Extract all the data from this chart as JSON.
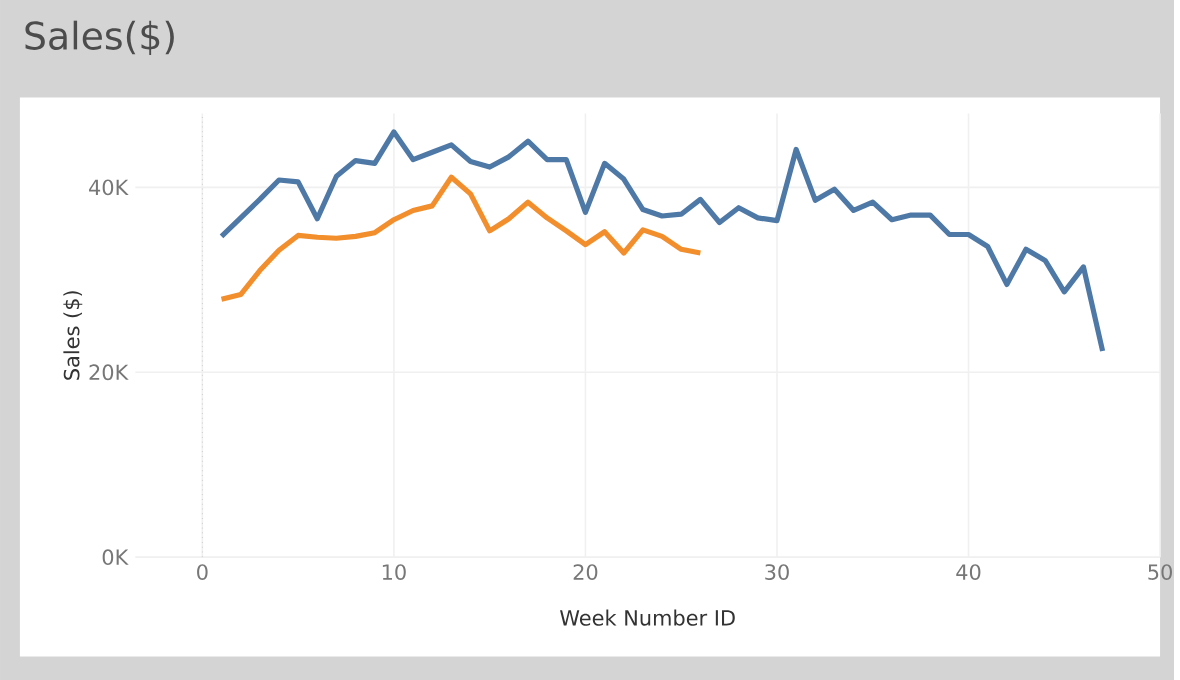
{
  "chart_data": {
    "type": "line",
    "title": "Sales($)",
    "xlabel": "Week Number ID",
    "ylabel": "Sales ($)",
    "x": [
      1,
      2,
      3,
      4,
      5,
      6,
      7,
      8,
      9,
      10,
      11,
      12,
      13,
      14,
      15,
      16,
      17,
      18,
      19,
      20,
      21,
      22,
      23,
      24,
      25,
      26,
      27,
      28,
      29,
      30,
      31,
      32,
      33,
      34,
      35,
      36,
      37,
      38,
      39,
      40,
      41,
      42,
      43,
      44,
      45,
      46,
      47
    ],
    "series": [
      {
        "color": "#4e79a7",
        "values": [
          34.7,
          36.7,
          38.7,
          40.8,
          40.6,
          36.6,
          41.2,
          42.9,
          42.6,
          46.0,
          43.0,
          43.8,
          44.6,
          42.8,
          42.2,
          43.3,
          45.0,
          43.0,
          43.0,
          37.3,
          42.6,
          40.9,
          37.6,
          36.9,
          37.1,
          38.7,
          36.2,
          37.8,
          36.7,
          36.4,
          44.1,
          38.6,
          39.8,
          37.5,
          38.4,
          36.5,
          37.0,
          37.0,
          34.9,
          34.9,
          33.6,
          29.5,
          33.3,
          32.1,
          28.7,
          31.4,
          22.3
        ]
      },
      {
        "color": "#f28e2b",
        "x": [
          1,
          2,
          3,
          4,
          5,
          6,
          7,
          8,
          9,
          10,
          11,
          12,
          13,
          14,
          15,
          16,
          17,
          18,
          19,
          20,
          21,
          22,
          23,
          24,
          25,
          26
        ],
        "values": [
          27.9,
          28.4,
          31.0,
          33.2,
          34.8,
          34.6,
          34.5,
          34.7,
          35.1,
          36.5,
          37.5,
          38.0,
          41.1,
          39.3,
          35.3,
          36.6,
          38.4,
          36.7,
          35.3,
          33.8,
          35.2,
          32.9,
          35.4,
          34.7,
          33.3,
          32.9
        ]
      }
    ],
    "xlim": [
      -3.5,
      50
    ],
    "ylim": [
      0,
      48
    ],
    "xticks": [
      0,
      10,
      20,
      30,
      40,
      50
    ],
    "yticks": [
      {
        "value": 0,
        "label": "0K"
      },
      {
        "value": 20,
        "label": "20K"
      },
      {
        "value": 40,
        "label": "40K"
      }
    ],
    "ref_lines": [
      {
        "axis": "x",
        "value": 0,
        "line_style": "dotted",
        "color": "#bbbbbb"
      }
    ],
    "grid": true,
    "marker": "none",
    "line_style": "solid"
  }
}
